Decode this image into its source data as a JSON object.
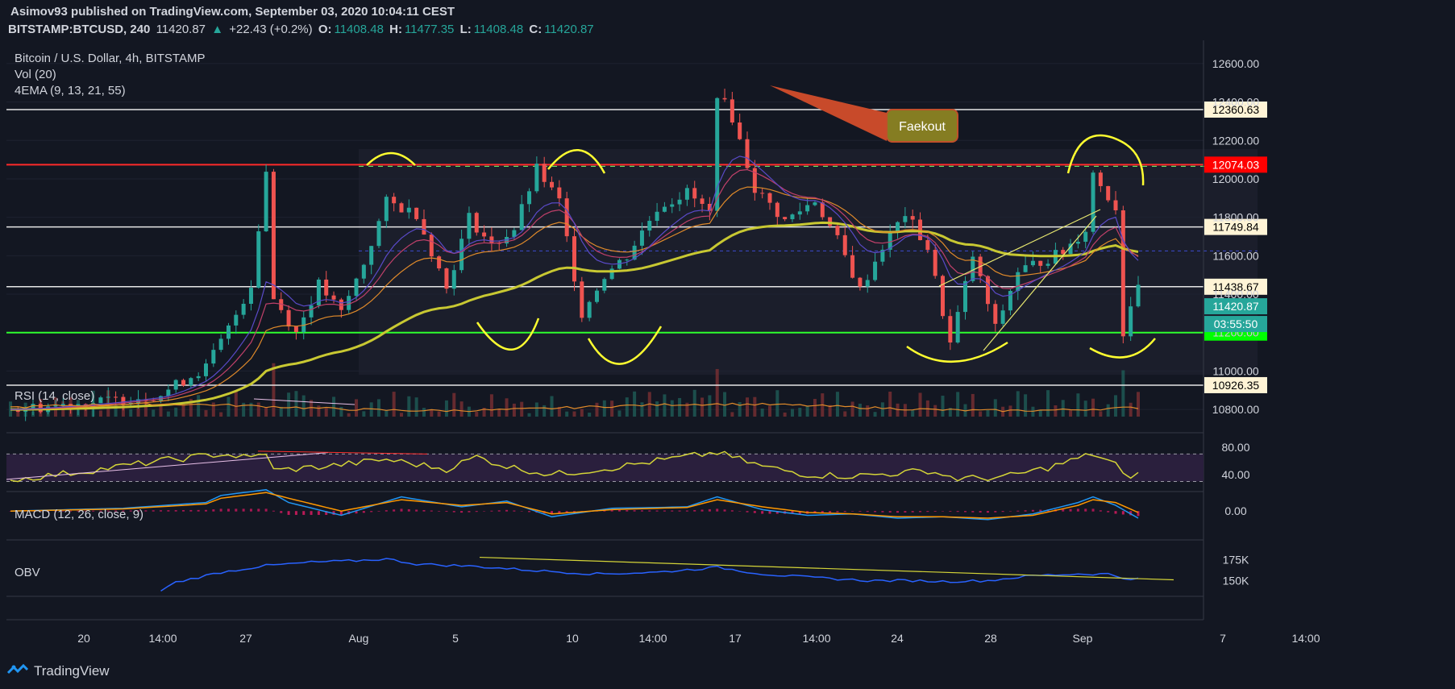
{
  "header": {
    "publisher": "Asimov93 published on TradingView.com, September 03, 2020 10:04:11 CEST",
    "symbol": "BITSTAMP:BTCUSD, 240",
    "last": "11420.87",
    "change": "+22.43 (+0.2%)",
    "o_label": "O:",
    "o_value": "11408.48",
    "h_label": "H:",
    "h_value": "11477.35",
    "l_label": "L:",
    "l_value": "11408.48",
    "c_label": "C:",
    "c_value": "11420.87"
  },
  "legend": {
    "main": "Bitcoin / U.S. Dollar, 4h, BITSTAMP",
    "vol": "Vol (20)",
    "ema": "4EMA (9, 13, 21, 55)",
    "rsi": "RSI (14, close)",
    "macd": "MACD (12, 26, close, 9)",
    "obv": "OBV"
  },
  "annotation": {
    "text": "Faekout"
  },
  "footer": {
    "brand": "TradingView"
  },
  "colors": {
    "bg": "#131722",
    "up": "#26a69a",
    "down": "#ef5350",
    "ema55": "#c8c832",
    "resistance": "#ff2a2a",
    "support": "#2eff2e",
    "rsi": "#d4d438",
    "obv": "#2962ff"
  },
  "chart_data": {
    "type": "candlestick",
    "x_ticks": [
      "20",
      "14:00",
      "27",
      "Aug",
      "5",
      "10",
      "14:00",
      "17",
      "14:00",
      "24",
      "28",
      "Sep",
      "7",
      "14:00"
    ],
    "y_ticks": [
      "12600.00",
      "12400.00",
      "12200.00",
      "12000.00",
      "11800.00",
      "11600.00",
      "11400.00",
      "11200.00",
      "11000.00",
      "10800.00"
    ],
    "ylim": [
      10750,
      12650
    ],
    "price_levels": [
      {
        "value": 12360.63,
        "label": "12360.63",
        "kind": "white"
      },
      {
        "value": 12074.03,
        "label": "12074.03",
        "kind": "resistance"
      },
      {
        "value": 11749.84,
        "label": "11749.84",
        "kind": "white"
      },
      {
        "value": 11438.67,
        "label": "11438.67",
        "kind": "white"
      },
      {
        "value": 11200.0,
        "label": "11200.00",
        "kind": "support"
      },
      {
        "value": 10926.35,
        "label": "10926.35",
        "kind": "white"
      }
    ],
    "last_price": {
      "value": 11420.87,
      "label": "11420.87",
      "countdown": "03:55:50"
    },
    "price_path": [
      [
        0,
        10800
      ],
      [
        12,
        10840
      ],
      [
        20,
        10880
      ],
      [
        26,
        11020
      ],
      [
        29,
        11220
      ],
      [
        32,
        11450
      ],
      [
        34,
        12040
      ],
      [
        35,
        11380
      ],
      [
        38,
        11200
      ],
      [
        41,
        11450
      ],
      [
        44,
        11300
      ],
      [
        47,
        11560
      ],
      [
        50,
        11880
      ],
      [
        54,
        11820
      ],
      [
        58,
        11430
      ],
      [
        61,
        11800
      ],
      [
        64,
        11650
      ],
      [
        67,
        11740
      ],
      [
        70,
        12050
      ],
      [
        73,
        11880
      ],
      [
        76,
        11300
      ],
      [
        79,
        11500
      ],
      [
        82,
        11600
      ],
      [
        86,
        11850
      ],
      [
        90,
        11930
      ],
      [
        93,
        11820
      ],
      [
        94,
        12450
      ],
      [
        96,
        12320
      ],
      [
        99,
        11950
      ],
      [
        103,
        11780
      ],
      [
        107,
        11890
      ],
      [
        110,
        11680
      ],
      [
        113,
        11420
      ],
      [
        116,
        11650
      ],
      [
        119,
        11820
      ],
      [
        122,
        11640
      ],
      [
        125,
        11140
      ],
      [
        128,
        11600
      ],
      [
        131,
        11220
      ],
      [
        134,
        11520
      ],
      [
        137,
        11570
      ],
      [
        140,
        11620
      ],
      [
        143,
        11740
      ],
      [
        144,
        12030
      ],
      [
        147,
        11850
      ],
      [
        148,
        11200
      ],
      [
        149,
        11350
      ],
      [
        150,
        11420
      ]
    ],
    "rsi": {
      "y_ticks": [
        "80.00",
        "40.00"
      ],
      "ylim": [
        20,
        95
      ],
      "values": [
        [
          0,
          32
        ],
        [
          10,
          45
        ],
        [
          20,
          60
        ],
        [
          28,
          70
        ],
        [
          32,
          64
        ],
        [
          34,
          72
        ],
        [
          35,
          46
        ],
        [
          42,
          52
        ],
        [
          50,
          62
        ],
        [
          58,
          48
        ],
        [
          62,
          66
        ],
        [
          66,
          52
        ],
        [
          72,
          40
        ],
        [
          80,
          50
        ],
        [
          86,
          60
        ],
        [
          94,
          72
        ],
        [
          100,
          52
        ],
        [
          106,
          40
        ],
        [
          112,
          38
        ],
        [
          118,
          42
        ],
        [
          122,
          46
        ],
        [
          126,
          34
        ],
        [
          132,
          36
        ],
        [
          138,
          50
        ],
        [
          144,
          70
        ],
        [
          147,
          55
        ],
        [
          148,
          38
        ],
        [
          150,
          40
        ]
      ]
    },
    "macd": {
      "y_ticks": [
        "0.00"
      ],
      "ylim": [
        -180,
        120
      ],
      "macd": [
        [
          0,
          0
        ],
        [
          15,
          20
        ],
        [
          26,
          60
        ],
        [
          28,
          110
        ],
        [
          34,
          150
        ],
        [
          37,
          60
        ],
        [
          44,
          -30
        ],
        [
          52,
          100
        ],
        [
          60,
          30
        ],
        [
          66,
          70
        ],
        [
          72,
          -40
        ],
        [
          80,
          20
        ],
        [
          86,
          25
        ],
        [
          90,
          30
        ],
        [
          94,
          100
        ],
        [
          100,
          10
        ],
        [
          106,
          -30
        ],
        [
          112,
          -20
        ],
        [
          118,
          -50
        ],
        [
          124,
          -40
        ],
        [
          130,
          -60
        ],
        [
          136,
          -20
        ],
        [
          142,
          60
        ],
        [
          144,
          100
        ],
        [
          147,
          40
        ],
        [
          150,
          -50
        ]
      ],
      "signal": [
        [
          0,
          0
        ],
        [
          15,
          15
        ],
        [
          26,
          50
        ],
        [
          28,
          90
        ],
        [
          34,
          130
        ],
        [
          37,
          90
        ],
        [
          44,
          0
        ],
        [
          52,
          80
        ],
        [
          60,
          40
        ],
        [
          66,
          60
        ],
        [
          72,
          -20
        ],
        [
          80,
          10
        ],
        [
          86,
          20
        ],
        [
          90,
          25
        ],
        [
          94,
          80
        ],
        [
          100,
          30
        ],
        [
          106,
          -10
        ],
        [
          112,
          -20
        ],
        [
          118,
          -40
        ],
        [
          124,
          -40
        ],
        [
          130,
          -50
        ],
        [
          136,
          -30
        ],
        [
          142,
          40
        ],
        [
          144,
          80
        ],
        [
          147,
          60
        ],
        [
          150,
          -10
        ]
      ]
    },
    "obv": {
      "y_ticks": [
        "175K",
        "150K"
      ],
      "ylim": [
        135000,
        195000
      ],
      "values": [
        [
          20,
          138000
        ],
        [
          22,
          148000
        ],
        [
          28,
          160000
        ],
        [
          34,
          168000
        ],
        [
          40,
          172000
        ],
        [
          46,
          174000
        ],
        [
          50,
          176000
        ],
        [
          54,
          170000
        ],
        [
          62,
          167000
        ],
        [
          70,
          162000
        ],
        [
          78,
          158000
        ],
        [
          86,
          160000
        ],
        [
          94,
          166000
        ],
        [
          100,
          158000
        ],
        [
          106,
          154000
        ],
        [
          114,
          150000
        ],
        [
          120,
          150000
        ],
        [
          124,
          149000
        ],
        [
          130,
          150000
        ],
        [
          136,
          156000
        ],
        [
          142,
          158000
        ],
        [
          146,
          158000
        ],
        [
          148,
          153000
        ],
        [
          150,
          152000
        ]
      ]
    }
  }
}
